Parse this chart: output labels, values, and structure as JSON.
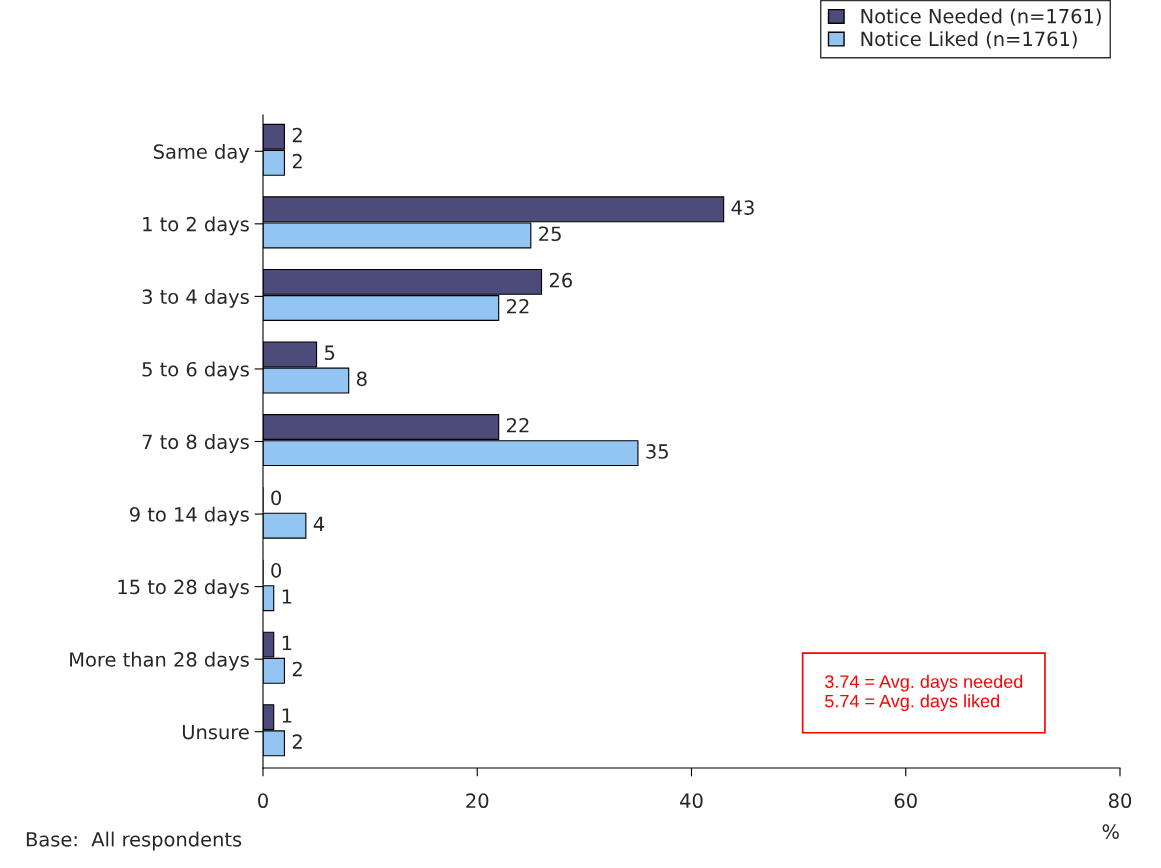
{
  "chart_data": {
    "type": "bar",
    "orientation": "horizontal",
    "categories": [
      "Same day",
      "1 to 2 days",
      "3 to 4 days",
      "5 to 6 days",
      "7 to 8 days",
      "9 to 14 days",
      "15 to 28 days",
      "More than 28 days",
      "Unsure"
    ],
    "series": [
      {
        "name": "Notice Needed (n=1761)",
        "color": "#4d4b7a",
        "values": [
          2,
          43,
          26,
          5,
          22,
          0,
          0,
          1,
          1
        ]
      },
      {
        "name": "Notice Liked (n=1761)",
        "color": "#92c5f2",
        "values": [
          2,
          25,
          22,
          8,
          35,
          4,
          1,
          2,
          2
        ]
      }
    ],
    "xlim": [
      0,
      80
    ],
    "xticks": [
      0,
      20,
      40,
      60,
      80
    ],
    "xlabel": "%",
    "data_labels": true,
    "grid": false,
    "legend": "top right",
    "annotations": [
      "3.74 = Avg. days needed\n5.74 = Avg. days liked",
      "Base:  All respondents"
    ]
  }
}
